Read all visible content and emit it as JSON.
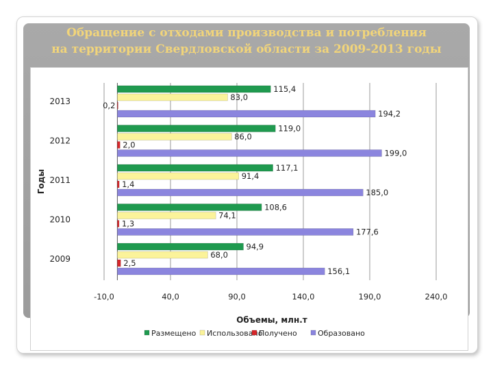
{
  "slide": {
    "title_line1": "Обращение с отходами производства и потребления",
    "title_line2": "на территории Свердловской области за 2009-2013 годы"
  },
  "colors": {
    "placed": "#1f9a4f",
    "used": "#fbf39a",
    "received": "#d7262a",
    "generated": "#8b85de"
  },
  "chart_data": {
    "type": "bar",
    "orientation": "horizontal",
    "categories": [
      "2013",
      "2012",
      "2011",
      "2010",
      "2009"
    ],
    "series": [
      {
        "name": "Размещено",
        "values": [
          115.4,
          119.0,
          117.1,
          108.6,
          94.9
        ],
        "labels": [
          "115,4",
          "119,0",
          "117,1",
          "108,6",
          "94,9"
        ]
      },
      {
        "name": "Использовано",
        "values": [
          83.0,
          86.0,
          91.4,
          74.1,
          68.0
        ],
        "labels": [
          "83,0",
          "86,0",
          "91,4",
          "74,1",
          "68,0"
        ]
      },
      {
        "name": "Получено",
        "values": [
          0.2,
          2.0,
          1.4,
          1.3,
          2.5
        ],
        "labels": [
          "0,2",
          "2,0",
          "1,4",
          "1,3",
          "2,5"
        ]
      },
      {
        "name": "Образовано",
        "values": [
          194.2,
          199.0,
          185.0,
          177.6,
          156.1
        ],
        "labels": [
          "194,2",
          "199,0",
          "185,0",
          "177,6",
          "156,1"
        ]
      }
    ],
    "xlim": [
      -10,
      240
    ],
    "ticks": [
      -10,
      40,
      90,
      140,
      190,
      240
    ],
    "tick_labels": [
      "-10,0",
      "40,0",
      "90,0",
      "140,0",
      "190,0",
      "240,0"
    ],
    "xlabel": "Объемы, млн.т",
    "ylabel": "Годы",
    "grid": true,
    "legend_position": "bottom"
  }
}
